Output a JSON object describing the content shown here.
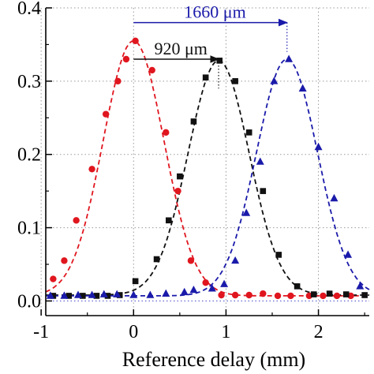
{
  "chart_data": {
    "type": "scatter",
    "title": "",
    "xlabel": "Reference delay (mm)",
    "ylabel": "",
    "xlim": [
      -0.95,
      2.55
    ],
    "ylim": [
      -0.02,
      0.4
    ],
    "xticks": [
      -1,
      0,
      1,
      2
    ],
    "xtick_labels": [
      "-1",
      "0",
      "1",
      "2"
    ],
    "yticks": [
      0.0,
      0.1,
      0.2,
      0.3,
      0.4
    ],
    "ytick_labels": [
      "0.0",
      "0.1",
      "0.2",
      "0.3",
      "0.4"
    ],
    "grid": "dotted horizontal lines at y ticks and vertical lines at x ticks",
    "series": [
      {
        "color": "#e0161f",
        "marker": "circle",
        "points": [
          [
            -0.87,
            0.03
          ],
          [
            -0.75,
            0.055
          ],
          [
            -0.62,
            0.11
          ],
          [
            -0.45,
            0.18
          ],
          [
            -0.3,
            0.255
          ],
          [
            -0.17,
            0.3
          ],
          [
            -0.08,
            0.33
          ],
          [
            0.02,
            0.355
          ],
          [
            0.2,
            0.315
          ],
          [
            0.35,
            0.23
          ],
          [
            0.48,
            0.15
          ],
          [
            0.62,
            0.055
          ],
          [
            0.78,
            0.025
          ],
          [
            0.95,
            0.008
          ],
          [
            1.1,
            0.008
          ],
          [
            1.25,
            0.008
          ],
          [
            1.4,
            0.01
          ],
          [
            1.56,
            0.007
          ],
          [
            1.7,
            0.007
          ],
          [
            1.9,
            0.007
          ],
          [
            2.05,
            0.007
          ],
          [
            2.2,
            0.007
          ],
          [
            2.35,
            0.007
          ]
        ],
        "fit": {
          "center": 0.0,
          "peak": 0.355,
          "sigma": 0.33,
          "baseline": 0.007
        }
      },
      {
        "color": "#111111",
        "marker": "square",
        "points": [
          [
            -0.87,
            0.007
          ],
          [
            -0.7,
            0.007
          ],
          [
            -0.55,
            0.007
          ],
          [
            -0.4,
            0.007
          ],
          [
            -0.28,
            0.007
          ],
          [
            -0.15,
            0.008
          ],
          [
            0.02,
            0.027
          ],
          [
            0.25,
            0.057
          ],
          [
            0.38,
            0.11
          ],
          [
            0.5,
            0.17
          ],
          [
            0.65,
            0.245
          ],
          [
            0.78,
            0.305
          ],
          [
            0.93,
            0.328
          ],
          [
            1.1,
            0.3
          ],
          [
            1.25,
            0.23
          ],
          [
            1.4,
            0.15
          ],
          [
            1.57,
            0.063
          ],
          [
            1.77,
            0.02
          ],
          [
            1.95,
            0.009
          ],
          [
            2.12,
            0.01
          ],
          [
            2.3,
            0.009
          ],
          [
            2.5,
            0.008
          ]
        ],
        "fit": {
          "center": 0.92,
          "peak": 0.328,
          "sigma": 0.33,
          "baseline": 0.008
        }
      },
      {
        "color": "#1a1aaa",
        "marker": "triangle",
        "points": [
          [
            -0.9,
            0.007
          ],
          [
            -0.75,
            0.007
          ],
          [
            -0.6,
            0.008
          ],
          [
            -0.45,
            0.008
          ],
          [
            -0.32,
            0.009
          ],
          [
            -0.18,
            0.009
          ],
          [
            0.0,
            0.008
          ],
          [
            0.18,
            0.008
          ],
          [
            0.35,
            0.01
          ],
          [
            0.55,
            0.012
          ],
          [
            0.65,
            0.015
          ],
          [
            0.85,
            0.017
          ],
          [
            0.98,
            0.023
          ],
          [
            1.1,
            0.055
          ],
          [
            1.22,
            0.12
          ],
          [
            1.37,
            0.19
          ],
          [
            1.52,
            0.3
          ],
          [
            1.68,
            0.33
          ],
          [
            1.83,
            0.29
          ],
          [
            2.0,
            0.21
          ],
          [
            2.17,
            0.14
          ],
          [
            2.32,
            0.063
          ],
          [
            2.45,
            0.02
          ]
        ],
        "fit": {
          "center": 1.66,
          "peak": 0.33,
          "sigma": 0.33,
          "baseline": 0.007
        }
      }
    ],
    "annotations": [
      {
        "text": "1660 μm",
        "color": "#1a1aaa",
        "from_x": 0.0,
        "to_x": 1.66,
        "y": 0.38
      },
      {
        "text": "920 μm",
        "color": "#111111",
        "from_x": 0.0,
        "to_x": 0.92,
        "y": 0.33
      }
    ]
  }
}
